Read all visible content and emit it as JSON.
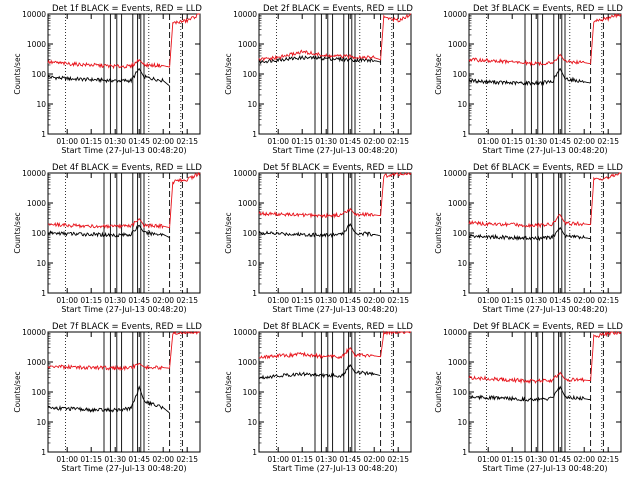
{
  "colors": {
    "events": "#000000",
    "lld": "#e8141c",
    "axis": "#000000",
    "background": "#ffffff"
  },
  "panel_common": {
    "ylabel": "Counts/sec",
    "y_scale": "log",
    "ylim": [
      1,
      10000
    ],
    "y_ticks": [
      {
        "v": 1,
        "label": "1"
      },
      {
        "v": 10,
        "label": "10"
      },
      {
        "v": 100,
        "label": "100"
      },
      {
        "v": 1000,
        "label": "1000"
      },
      {
        "v": 10000,
        "label": "10000"
      }
    ],
    "xlim": [
      "00:48",
      "02:23"
    ],
    "x_ticks": [
      {
        "t": "01:00",
        "label": "01:00"
      },
      {
        "t": "01:15",
        "label": "01:15"
      },
      {
        "t": "01:30",
        "label": "01:30"
      },
      {
        "t": "01:45",
        "label": "01:45"
      },
      {
        "t": "02:00",
        "label": "02:00"
      },
      {
        "t": "02:15",
        "label": "02:15"
      }
    ],
    "dotted_lines": [
      "00:59",
      "01:51",
      "02:11"
    ],
    "dashed_lines": [
      "02:04",
      "02:12"
    ],
    "solid_lines": [
      "01:23",
      "01:27",
      "01:31",
      "01:34",
      "01:41",
      "01:44",
      "01:46",
      "01:48"
    ],
    "series_names": [
      "Events",
      "LLD"
    ]
  },
  "chart_data": [
    {
      "type": "line",
      "title": "Det 1f BLACK = Events, RED = LLD",
      "xlabel": "Start Time (27-Jul-13 00:48:20)",
      "series": [
        {
          "name": "Events",
          "x": [
            "00:48",
            "01:00",
            "01:15",
            "01:30",
            "01:40",
            "01:45",
            "01:48",
            "02:00",
            "02:04"
          ],
          "y": [
            80,
            70,
            65,
            60,
            60,
            150,
            80,
            60,
            40
          ]
        },
        {
          "name": "LLD",
          "x": [
            "00:48",
            "01:00",
            "01:15",
            "01:30",
            "01:40",
            "01:45",
            "01:48",
            "02:00",
            "02:04",
            "02:06",
            "02:15",
            "02:23"
          ],
          "y": [
            250,
            220,
            200,
            180,
            180,
            300,
            200,
            190,
            170,
            5000,
            6000,
            10000
          ]
        }
      ]
    },
    {
      "type": "line",
      "title": "Det 2f BLACK = Events, RED = LLD",
      "xlabel": "Start Time (27-Jul-13 00:48:20)",
      "series": [
        {
          "name": "Events",
          "x": [
            "00:48",
            "01:00",
            "01:15",
            "01:30",
            "01:45",
            "02:00",
            "02:04"
          ],
          "y": [
            250,
            300,
            350,
            330,
            300,
            280,
            250
          ]
        },
        {
          "name": "LLD",
          "x": [
            "00:48",
            "01:00",
            "01:15",
            "01:30",
            "01:45",
            "02:00",
            "02:04",
            "02:06",
            "02:15",
            "02:23"
          ],
          "y": [
            300,
            350,
            550,
            400,
            380,
            350,
            300,
            8000,
            6000,
            10000
          ]
        }
      ]
    },
    {
      "type": "line",
      "title": "Det 3f BLACK = Events, RED = LLD",
      "xlabel": "Start Time (27-Jul-13 00:48:20)",
      "series": [
        {
          "name": "Events",
          "x": [
            "00:48",
            "01:00",
            "01:15",
            "01:30",
            "01:40",
            "01:45",
            "01:48",
            "02:00",
            "02:04"
          ],
          "y": [
            60,
            55,
            50,
            50,
            55,
            150,
            70,
            55,
            50
          ]
        },
        {
          "name": "LLD",
          "x": [
            "00:48",
            "01:00",
            "01:15",
            "01:30",
            "01:40",
            "01:45",
            "01:48",
            "02:00",
            "02:04",
            "02:06",
            "02:15",
            "02:23"
          ],
          "y": [
            300,
            280,
            250,
            220,
            230,
            450,
            260,
            240,
            220,
            6000,
            7000,
            10000
          ]
        }
      ]
    },
    {
      "type": "line",
      "title": "Det 4f BLACK = Events, RED = LLD",
      "xlabel": "Start Time (27-Jul-13 00:48:20)",
      "series": [
        {
          "name": "Events",
          "x": [
            "00:48",
            "01:00",
            "01:15",
            "01:30",
            "01:40",
            "01:45",
            "01:48",
            "02:00",
            "02:04"
          ],
          "y": [
            100,
            95,
            90,
            85,
            90,
            180,
            100,
            90,
            70
          ]
        },
        {
          "name": "LLD",
          "x": [
            "00:48",
            "01:00",
            "01:15",
            "01:30",
            "01:40",
            "01:45",
            "01:48",
            "02:00",
            "02:04",
            "02:06",
            "02:15",
            "02:23"
          ],
          "y": [
            200,
            180,
            170,
            160,
            170,
            300,
            180,
            170,
            150,
            5000,
            6000,
            10000
          ]
        }
      ]
    },
    {
      "type": "line",
      "title": "Det 5f BLACK = Events, RED = LLD",
      "xlabel": "Start Time (27-Jul-13 00:48:20)",
      "series": [
        {
          "name": "Events",
          "x": [
            "00:48",
            "01:00",
            "01:15",
            "01:30",
            "01:40",
            "01:45",
            "01:48",
            "02:00",
            "02:04"
          ],
          "y": [
            100,
            95,
            90,
            85,
            90,
            200,
            100,
            90,
            80
          ]
        },
        {
          "name": "LLD",
          "x": [
            "00:48",
            "01:00",
            "01:15",
            "01:30",
            "01:40",
            "01:45",
            "01:48",
            "02:00",
            "02:04",
            "02:06",
            "02:15",
            "02:23"
          ],
          "y": [
            450,
            420,
            400,
            380,
            400,
            650,
            420,
            400,
            380,
            8000,
            9000,
            10000
          ]
        }
      ]
    },
    {
      "type": "line",
      "title": "Det 6f BLACK = Events, RED = LLD",
      "xlabel": "Start Time (27-Jul-13 00:48:20)",
      "series": [
        {
          "name": "Events",
          "x": [
            "00:48",
            "01:00",
            "01:15",
            "01:30",
            "01:40",
            "01:45",
            "01:48",
            "02:00",
            "02:04"
          ],
          "y": [
            80,
            75,
            70,
            65,
            70,
            150,
            80,
            70,
            65
          ]
        },
        {
          "name": "LLD",
          "x": [
            "00:48",
            "01:00",
            "01:15",
            "01:30",
            "01:40",
            "01:45",
            "01:48",
            "02:00",
            "02:04",
            "02:06",
            "02:15",
            "02:23"
          ],
          "y": [
            220,
            200,
            190,
            180,
            190,
            400,
            210,
            200,
            190,
            6000,
            7000,
            10000
          ]
        }
      ]
    },
    {
      "type": "line",
      "title": "Det 7f BLACK = Events, RED = LLD",
      "xlabel": "Start Time (27-Jul-13 00:48:20)",
      "series": [
        {
          "name": "Events",
          "x": [
            "00:48",
            "01:00",
            "01:15",
            "01:30",
            "01:40",
            "01:45",
            "01:48",
            "02:00",
            "02:04"
          ],
          "y": [
            30,
            28,
            25,
            25,
            28,
            150,
            50,
            30,
            20
          ]
        },
        {
          "name": "LLD",
          "x": [
            "00:48",
            "01:00",
            "01:15",
            "01:30",
            "01:40",
            "01:45",
            "01:48",
            "02:00",
            "02:04",
            "02:06",
            "02:15",
            "02:23"
          ],
          "y": [
            700,
            680,
            650,
            620,
            650,
            900,
            680,
            650,
            620,
            9000,
            10000,
            10000
          ]
        }
      ]
    },
    {
      "type": "line",
      "title": "Det 8f BLACK = Events, RED = LLD",
      "xlabel": "Start Time (27-Jul-13 00:48:20)",
      "series": [
        {
          "name": "Events",
          "x": [
            "00:48",
            "01:00",
            "01:15",
            "01:30",
            "01:40",
            "01:45",
            "01:48",
            "02:00",
            "02:04"
          ],
          "y": [
            300,
            350,
            400,
            350,
            350,
            800,
            450,
            400,
            350
          ]
        },
        {
          "name": "LLD",
          "x": [
            "00:48",
            "01:00",
            "01:15",
            "01:30",
            "01:40",
            "01:45",
            "01:48",
            "02:00",
            "02:04",
            "02:06",
            "02:15",
            "02:23"
          ],
          "y": [
            1500,
            1600,
            1800,
            1500,
            1500,
            3000,
            1700,
            1600,
            1500,
            9000,
            10000,
            10000
          ]
        }
      ]
    },
    {
      "type": "line",
      "title": "Det 9f BLACK = Events, RED = LLD",
      "xlabel": "Start Time (27-Jul-13 00:48:20)",
      "series": [
        {
          "name": "Events",
          "x": [
            "00:48",
            "01:00",
            "01:15",
            "01:30",
            "01:40",
            "01:45",
            "01:48",
            "02:00",
            "02:04"
          ],
          "y": [
            70,
            65,
            60,
            55,
            60,
            150,
            70,
            60,
            55
          ]
        },
        {
          "name": "LLD",
          "x": [
            "00:48",
            "01:00",
            "01:15",
            "01:30",
            "01:40",
            "01:45",
            "01:48",
            "02:00",
            "02:04",
            "02:06",
            "02:15",
            "02:23"
          ],
          "y": [
            300,
            280,
            250,
            230,
            240,
            450,
            260,
            250,
            240,
            7000,
            9000,
            10000
          ]
        }
      ]
    }
  ]
}
